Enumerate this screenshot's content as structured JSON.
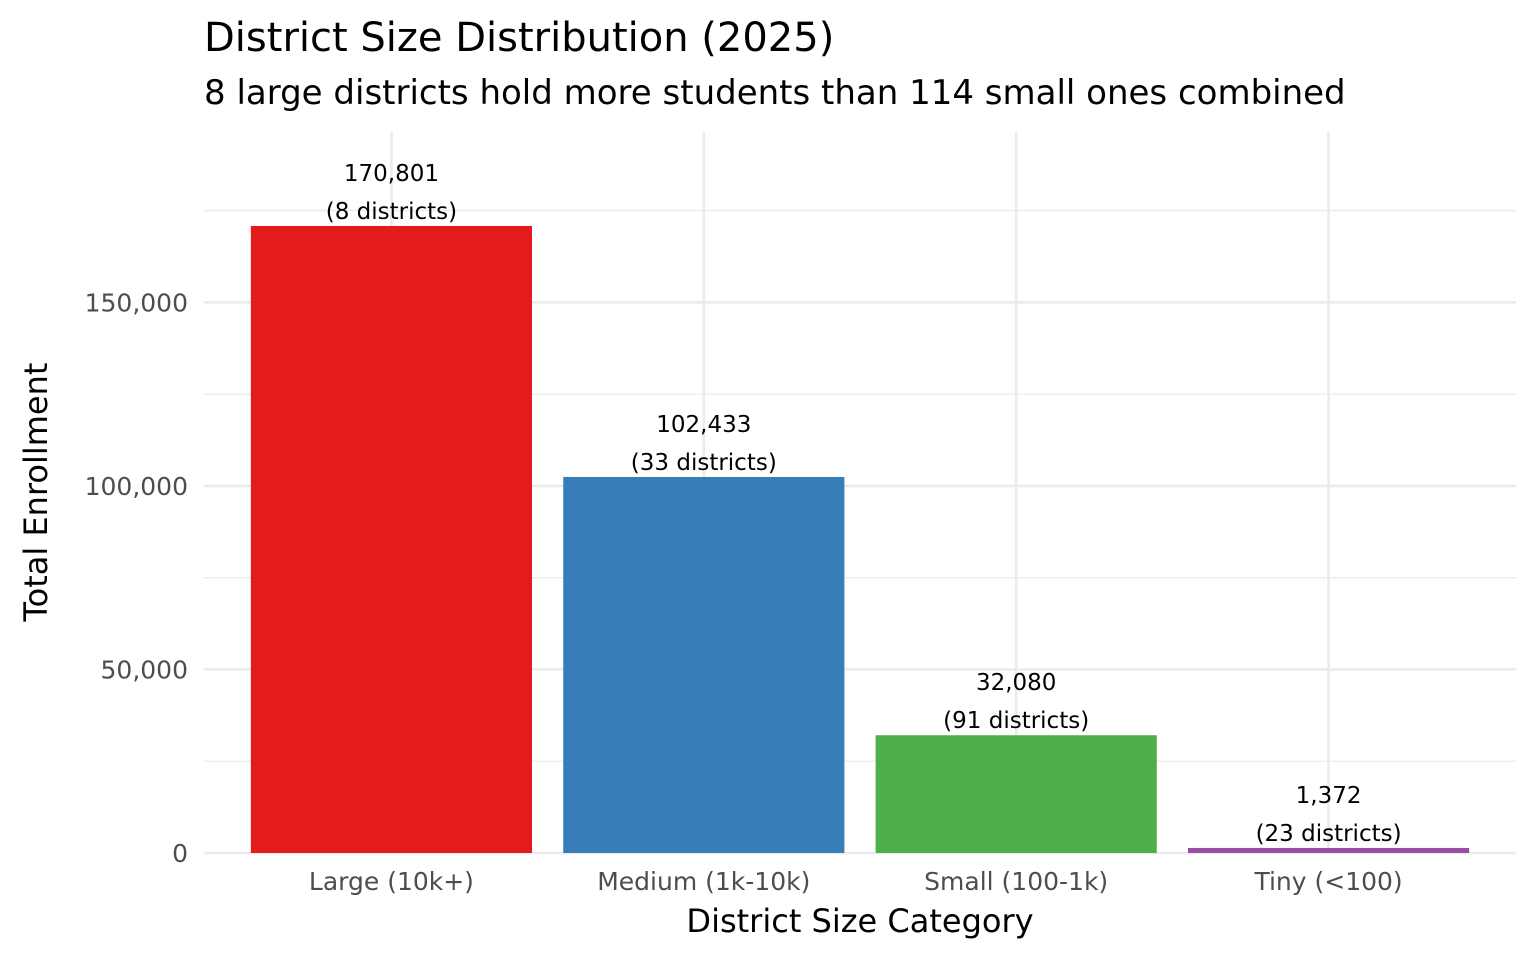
{
  "chart_data": {
    "type": "bar",
    "title": "District Size Distribution (2025)",
    "subtitle": "8 large districts hold more students than 114 small ones combined",
    "xlabel": "District Size Category",
    "ylabel": "Total Enrollment",
    "categories": [
      "Large (10k+)",
      "Medium (1k-10k)",
      "Small (100-1k)",
      "Tiny (<100)"
    ],
    "values": [
      170801,
      102433,
      32080,
      1372
    ],
    "value_labels": [
      "170,801",
      "102,433",
      "32,080",
      "1,372"
    ],
    "count_labels": [
      "(8 districts)",
      "(33 districts)",
      "(91 districts)",
      "(23 districts)"
    ],
    "colors": [
      "#e41a1c",
      "#377eb8",
      "#4daf4a",
      "#984ea3"
    ],
    "yticks": [
      0,
      50000,
      100000,
      150000
    ],
    "ytick_labels": [
      "0",
      "50,000",
      "100,000",
      "150,000"
    ],
    "ylim": [
      0,
      196400
    ],
    "grid": true,
    "legend": "none"
  }
}
